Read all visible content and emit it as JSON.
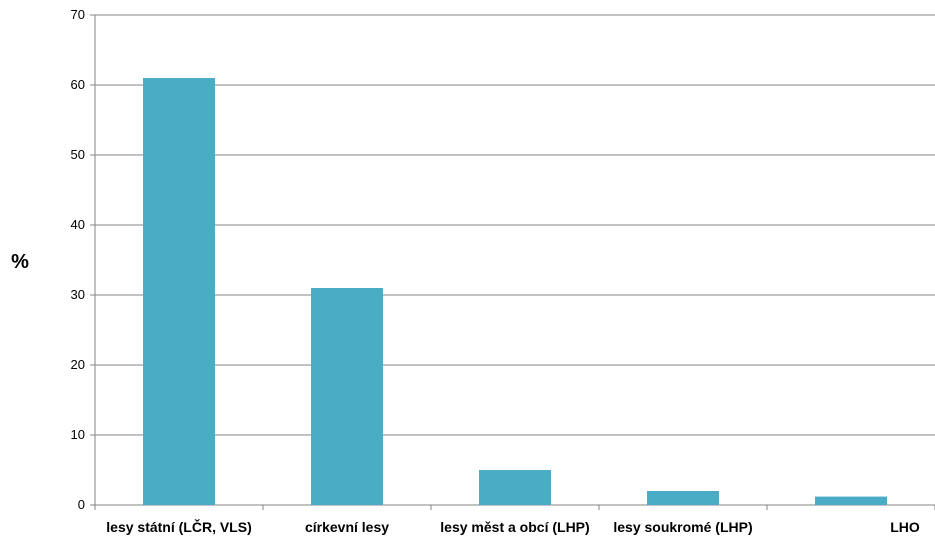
{
  "chart_data": {
    "type": "bar",
    "categories": [
      "lesy státní (LČR, VLS)",
      "církevní lesy",
      "lesy měst a obcí (LHP)",
      "lesy soukromé (LHP)",
      "LHO"
    ],
    "values": [
      61,
      31,
      5,
      2,
      1.2
    ],
    "ylabel": "%",
    "xlabel": "",
    "ylim": [
      0,
      70
    ],
    "yticks": [
      0,
      10,
      20,
      30,
      40,
      50,
      60,
      70
    ],
    "grid": true,
    "bar_color": "#4BACC6"
  }
}
